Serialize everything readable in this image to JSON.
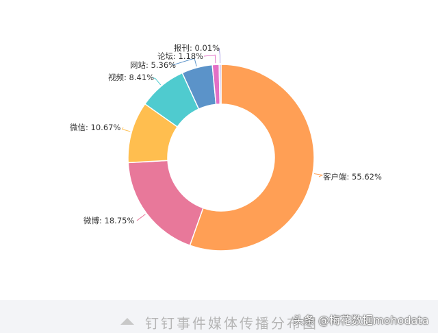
{
  "chart_data": {
    "type": "pie",
    "donut": true,
    "slices": [
      {
        "label": "客户端",
        "value": 55.62,
        "text": "客户端: 55.62%",
        "color": "#FF9F55"
      },
      {
        "label": "微博",
        "value": 18.75,
        "text": "微博: 18.75%",
        "color": "#E8789A"
      },
      {
        "label": "微信",
        "value": 10.67,
        "text": "微信: 10.67%",
        "color": "#FFBE4F"
      },
      {
        "label": "视频",
        "value": 8.41,
        "text": "视频: 8.41%",
        "color": "#4FCBCF"
      },
      {
        "label": "网站",
        "value": 5.36,
        "text": "网站: 5.36%",
        "color": "#5B93C9"
      },
      {
        "label": "论坛",
        "value": 1.18,
        "text": "论坛: 1.18%",
        "color": "#E36FC6"
      },
      {
        "label": "报刊",
        "value": 0.01,
        "text": "报刊: 0.01%",
        "color": "#A89CE6"
      }
    ],
    "start_angle": "12 o'clock",
    "direction": "clockwise",
    "legend": "none"
  },
  "caption": {
    "title": "钉钉事件媒体传播分布图",
    "watermark": "头条 @梅花数据mohodata"
  }
}
